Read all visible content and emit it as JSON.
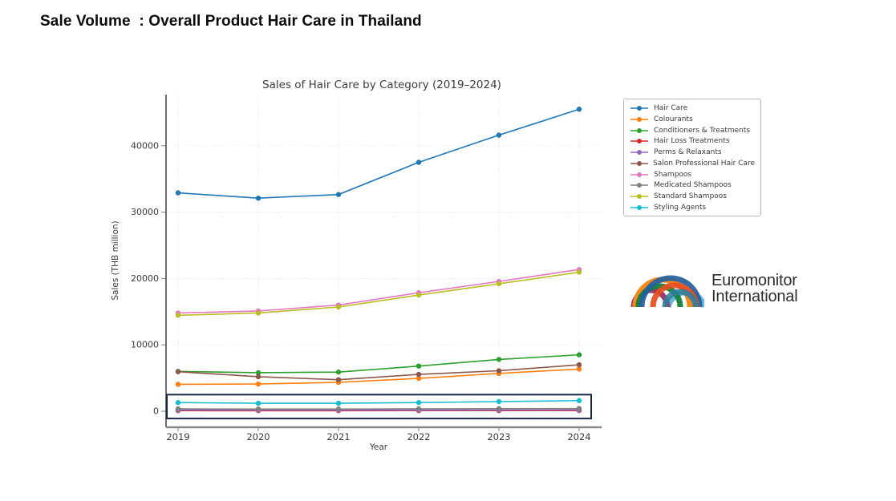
{
  "header": {
    "title": "Sale Volume  : Overall Product Hair Care in Thailand"
  },
  "chart_data": {
    "type": "line",
    "title": "Sales of Hair Care by Category (2019–2024)",
    "xlabel": "Year",
    "ylabel": "Sales (THB million)",
    "x": [
      2019,
      2020,
      2021,
      2022,
      2023,
      2024
    ],
    "yticks": [
      0,
      10000,
      20000,
      30000,
      40000
    ],
    "ylim": [
      -1500,
      47700
    ],
    "grid": true,
    "legend_position": "right",
    "series": [
      {
        "name": "Hair Care",
        "color": "#1f77b4",
        "values": [
          32900,
          32100,
          32650,
          37500,
          41600,
          45500
        ]
      },
      {
        "name": "Colourants",
        "color": "#ff7f0e",
        "values": [
          4050,
          4100,
          4350,
          4950,
          5700,
          6350
        ]
      },
      {
        "name": "Conditioners & Treatments",
        "color": "#2ca02c",
        "values": [
          6000,
          5800,
          5900,
          6800,
          7800,
          8500
        ]
      },
      {
        "name": "Hair Loss Treatments",
        "color": "#d62728",
        "values": [
          90,
          85,
          85,
          90,
          95,
          100
        ]
      },
      {
        "name": "Perms & Relaxants",
        "color": "#9467bd",
        "values": [
          180,
          170,
          165,
          170,
          180,
          190
        ]
      },
      {
        "name": "Salon Professional Hair Care",
        "color": "#8c564b",
        "values": [
          5950,
          5200,
          4750,
          5550,
          6100,
          7000
        ]
      },
      {
        "name": "Shampoos",
        "color": "#e377c2",
        "values": [
          14800,
          15100,
          16000,
          17850,
          19550,
          21350
        ]
      },
      {
        "name": "Medicated Shampoos",
        "color": "#7f7f7f",
        "values": [
          350,
          330,
          330,
          360,
          380,
          400
        ]
      },
      {
        "name": "Standard Shampoos",
        "color": "#bcbd22",
        "values": [
          14450,
          14800,
          15700,
          17500,
          19200,
          20950
        ]
      },
      {
        "name": "Styling Agents",
        "color": "#17becf",
        "values": [
          1300,
          1200,
          1200,
          1300,
          1450,
          1600
        ]
      }
    ],
    "highlight_box": {
      "x_range": [
        2019,
        2024
      ],
      "y_range": [
        -1100,
        2500
      ],
      "color": "#1a2942"
    }
  },
  "logo": {
    "line1": "Euromonitor",
    "line2": "International"
  }
}
